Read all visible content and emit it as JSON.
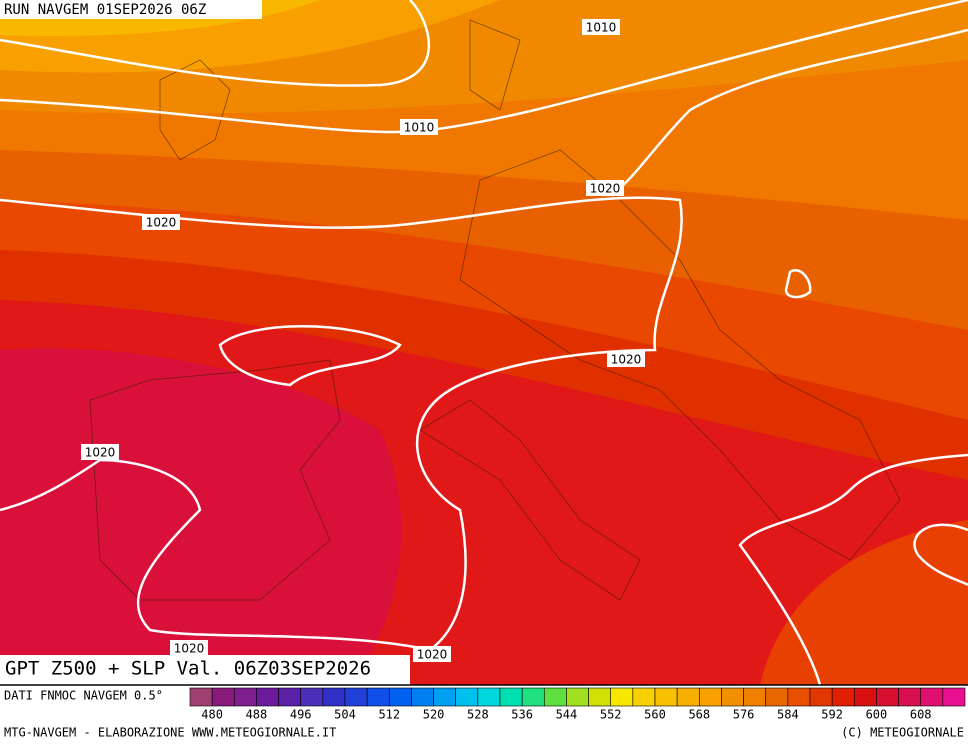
{
  "header": {
    "run": "RUN NAVGEM 01SEP2026 06Z"
  },
  "map": {
    "caption": "GPT Z500 + SLP Val. 06Z03SEP2026",
    "isobar_labels": [
      1010,
      1010,
      1020,
      1020,
      1020,
      1020,
      1020,
      1020
    ]
  },
  "colorbar": {
    "source": "DATI FNMOC NAVGEM 0.5°",
    "labels": [
      480,
      488,
      496,
      504,
      512,
      520,
      528,
      536,
      544,
      552,
      560,
      568,
      576,
      584,
      592,
      600,
      608
    ],
    "colors": [
      "#a04070",
      "#8a1a7a",
      "#7f1f8f",
      "#6a1a9a",
      "#5a20a8",
      "#4a30b8",
      "#3030c8",
      "#2040d8",
      "#1050e8",
      "#0060f0",
      "#0080f0",
      "#00a0f0",
      "#00c0f0",
      "#00d8e0",
      "#00e0b0",
      "#20e080",
      "#60e040",
      "#a0e020",
      "#d0e000",
      "#f8e800",
      "#f8d000",
      "#f8c000",
      "#f8b000",
      "#f8a000",
      "#f09000",
      "#f08000",
      "#e86800",
      "#e85000",
      "#e03800",
      "#e02000",
      "#d81010",
      "#d81030",
      "#d81050",
      "#e01070",
      "#e81090"
    ]
  },
  "footer": {
    "credit": "MTG-NAVGEM - ELABORAZIONE WWW.METEOGIORNALE.IT",
    "copyright": "(C) METEOGIORNALE"
  }
}
